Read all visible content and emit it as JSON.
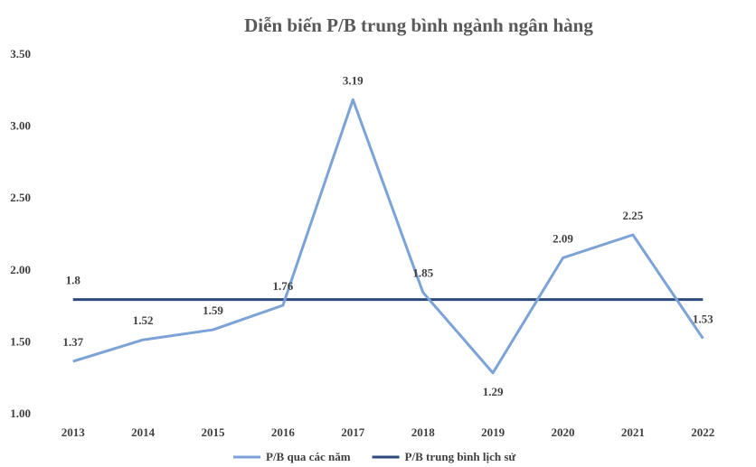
{
  "chart_data": {
    "type": "line",
    "title": "Diễn biến P/B trung bình ngành ngân hàng",
    "categories": [
      "2013",
      "2014",
      "2015",
      "2016",
      "2017",
      "2018",
      "2019",
      "2020",
      "2021",
      "2022"
    ],
    "series": [
      {
        "name": "P/B qua các năm",
        "color": "#7ba3d8",
        "values": [
          1.37,
          1.52,
          1.59,
          1.76,
          3.19,
          1.85,
          1.29,
          2.09,
          2.25,
          1.53
        ]
      },
      {
        "name": "P/B trung bình lịch sử",
        "color": "#2e4a7a",
        "values": [
          1.8,
          1.8,
          1.8,
          1.8,
          1.8,
          1.8,
          1.8,
          1.8,
          1.8,
          1.8
        ],
        "value_labels": [
          "1.8",
          null,
          null,
          null,
          null,
          null,
          null,
          null,
          null,
          null
        ]
      }
    ],
    "ylim": [
      1,
      3.5
    ],
    "yticks": [
      {
        "value": 1,
        "label": "1.00"
      },
      {
        "value": 1.5,
        "label": "1.50"
      },
      {
        "value": 2,
        "label": "2.00"
      },
      {
        "value": 2.5,
        "label": "2.50"
      },
      {
        "value": 3,
        "label": "3.00"
      },
      {
        "value": 3.5,
        "label": "3.50"
      }
    ],
    "grid": false,
    "legend": "bottom"
  }
}
